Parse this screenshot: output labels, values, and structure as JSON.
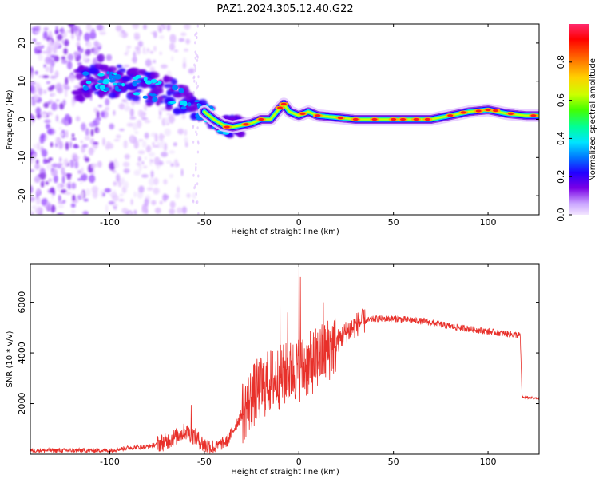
{
  "title": "PAZ1.2024.305.12.40.G22",
  "chart_data": [
    {
      "type": "heatmap",
      "xlabel": "Height of straight line (km)",
      "ylabel": "Frequency (Hz)",
      "xlim": [
        -142,
        127
      ],
      "ylim": [
        -25,
        25
      ],
      "xticks": [
        -100,
        -50,
        0,
        50,
        100
      ],
      "yticks": [
        -20,
        -10,
        0,
        10,
        20
      ],
      "colorbar": {
        "label": "Normalized spectral amplitude",
        "range": [
          0,
          1
        ],
        "ticks": [
          0.0,
          0.2,
          0.4,
          0.6,
          0.8
        ],
        "colors": [
          "#f3e6ff",
          "#c9a3ff",
          "#7a00e6",
          "#2200ff",
          "#0077ff",
          "#00e5ff",
          "#00ff99",
          "#44ff00",
          "#ccff00",
          "#ffd000",
          "#ff6a00",
          "#ff0000",
          "#ff2a6e"
        ]
      },
      "ridge": [
        {
          "x": -118,
          "f": 9
        },
        {
          "x": -110,
          "f": 10
        },
        {
          "x": -100,
          "f": 10
        },
        {
          "x": -90,
          "f": 10
        },
        {
          "x": -80,
          "f": 8
        },
        {
          "x": -70,
          "f": 7
        },
        {
          "x": -60,
          "f": 5
        },
        {
          "x": -55,
          "f": 3
        },
        {
          "x": -50,
          "f": 2
        },
        {
          "x": -45,
          "f": 0
        },
        {
          "x": -40,
          "f": -1.5
        },
        {
          "x": -35,
          "f": -2
        },
        {
          "x": -30,
          "f": -1.5
        },
        {
          "x": -25,
          "f": -1
        },
        {
          "x": -20,
          "f": 0
        },
        {
          "x": -15,
          "f": 0
        },
        {
          "x": -10,
          "f": 3
        },
        {
          "x": -8,
          "f": 4
        },
        {
          "x": -5,
          "f": 2
        },
        {
          "x": 0,
          "f": 1
        },
        {
          "x": 5,
          "f": 2
        },
        {
          "x": 10,
          "f": 1
        },
        {
          "x": 20,
          "f": 0.5
        },
        {
          "x": 30,
          "f": 0
        },
        {
          "x": 40,
          "f": 0
        },
        {
          "x": 50,
          "f": 0
        },
        {
          "x": 60,
          "f": 0
        },
        {
          "x": 70,
          "f": 0
        },
        {
          "x": 80,
          "f": 1
        },
        {
          "x": 90,
          "f": 2
        },
        {
          "x": 100,
          "f": 2.5
        },
        {
          "x": 110,
          "f": 1.5
        },
        {
          "x": 120,
          "f": 1
        },
        {
          "x": 127,
          "f": 1
        }
      ],
      "noise_region": [
        -142,
        -55
      ]
    },
    {
      "type": "line",
      "xlabel": "Height of straight line (km)",
      "ylabel": "SNR (10 * v/v)",
      "xlim": [
        -142,
        127
      ],
      "ylim": [
        0,
        7500
      ],
      "xticks": [
        -100,
        -50,
        0,
        50,
        100
      ],
      "yticks": [
        2000,
        4000,
        6000
      ],
      "color": "#e8302a",
      "envelope": [
        {
          "x": -142,
          "y": 150
        },
        {
          "x": -100,
          "y": 150
        },
        {
          "x": -90,
          "y": 250
        },
        {
          "x": -80,
          "y": 300
        },
        {
          "x": -70,
          "y": 500
        },
        {
          "x": -60,
          "y": 900
        },
        {
          "x": -55,
          "y": 700
        },
        {
          "x": -50,
          "y": 350
        },
        {
          "x": -45,
          "y": 250
        },
        {
          "x": -38,
          "y": 500
        },
        {
          "x": -33,
          "y": 1200
        },
        {
          "x": -28,
          "y": 1900
        },
        {
          "x": -22,
          "y": 2500
        },
        {
          "x": -15,
          "y": 2900
        },
        {
          "x": -8,
          "y": 3100
        },
        {
          "x": -2,
          "y": 3300
        },
        {
          "x": 5,
          "y": 3500
        },
        {
          "x": 12,
          "y": 3900
        },
        {
          "x": 18,
          "y": 4300
        },
        {
          "x": 25,
          "y": 4800
        },
        {
          "x": 32,
          "y": 5200
        },
        {
          "x": 40,
          "y": 5350
        },
        {
          "x": 50,
          "y": 5350
        },
        {
          "x": 60,
          "y": 5300
        },
        {
          "x": 70,
          "y": 5200
        },
        {
          "x": 80,
          "y": 5050
        },
        {
          "x": 90,
          "y": 4950
        },
        {
          "x": 100,
          "y": 4850
        },
        {
          "x": 110,
          "y": 4750
        },
        {
          "x": 117,
          "y": 4700
        },
        {
          "x": 118,
          "y": 2250
        },
        {
          "x": 127,
          "y": 2200
        }
      ],
      "spikes": [
        {
          "x": -57,
          "y": 1950
        },
        {
          "x": -10,
          "y": 6100
        },
        {
          "x": -6,
          "y": 5600
        },
        {
          "x": 0,
          "y": 7400
        },
        {
          "x": 0.8,
          "y": 7000
        },
        {
          "x": 13,
          "y": 6000
        }
      ]
    }
  ]
}
